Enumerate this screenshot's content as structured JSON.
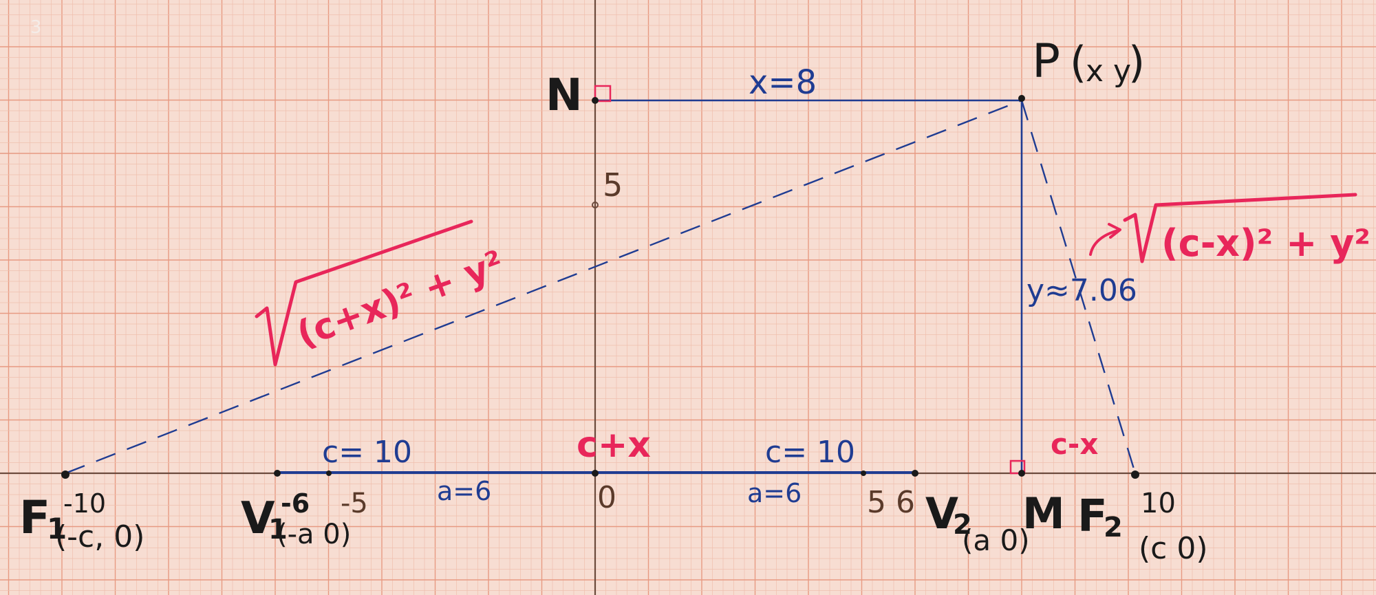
{
  "colors": {
    "paper": "#f7ddd2",
    "grid_minor": "#efbfae",
    "grid_major": "#e79a82",
    "axis": "#6b4a3c",
    "ink_blue": "#1f3c92",
    "ink_pink": "#e8265a",
    "ink_black": "#1a1a1a"
  },
  "labels": {
    "n_point": "N",
    "p_point": "P",
    "p_coords": "x y",
    "x_segment": "x=8",
    "y_segment": "y≈7.06",
    "y_tick_5": "5",
    "origin": "0",
    "f1": "F",
    "f1_sub": "1",
    "f1_x": "-10",
    "f1_coords": "(-c, 0)",
    "v1": "V",
    "v1_sub": "1",
    "v1_x": "-6",
    "v1_coords": "(-a 0)",
    "tick_neg5": "-5",
    "c10_left": "c= 10",
    "a6_left": "a=6",
    "c_plus_x": "c+x",
    "c10_right": "c= 10",
    "a6_right": "a=6",
    "tick_5_6": "5 6",
    "v2": "V",
    "v2_sub": "2",
    "v2_coords": "(a 0)",
    "m_point": "M",
    "f2": "F",
    "f2_sub": "2",
    "f2_x": "10",
    "f2_coords": "(c 0)",
    "c_minus_x": "c-x",
    "sqrt_left": "(c+x)² + y²",
    "sqrt_right": "(c-x)² + y²",
    "corner_mark": "3"
  }
}
